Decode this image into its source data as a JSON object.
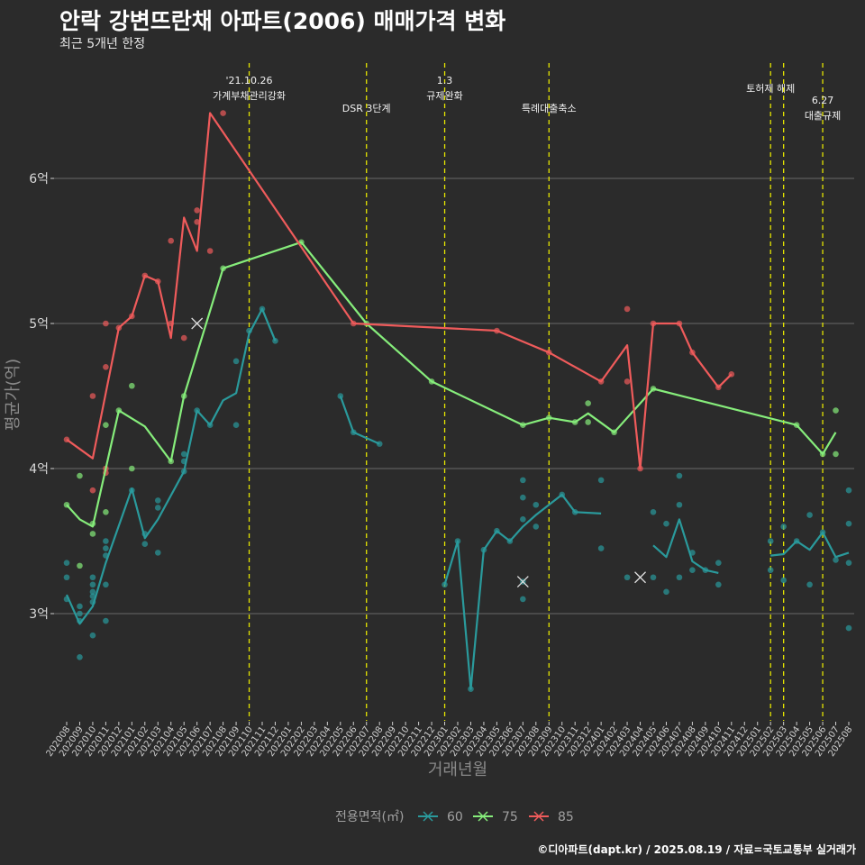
{
  "title": "안락 강변뜨란채 아파트(2006) 매매가격 변화",
  "subtitle": "최근 5개년 한정",
  "caption": "©디아파트(dapt.kr) / 2025.08.19 / 자료=국토교통부 실거래가",
  "chart_data": {
    "type": "line",
    "xlabel": "거래년월",
    "ylabel": "평균가(억)",
    "ylim": [
      2.3,
      6.9
    ],
    "yticks": [
      3,
      4,
      5,
      6
    ],
    "ytick_labels": [
      "3억",
      "4억",
      "5억",
      "6억"
    ],
    "grid": true,
    "legend": {
      "title": "전용면적(㎡)",
      "position": "bottom"
    },
    "x": [
      "202008",
      "202009",
      "202010",
      "202011",
      "202012",
      "202101",
      "202102",
      "202103",
      "202104",
      "202105",
      "202106",
      "202107",
      "202108",
      "202109",
      "202110",
      "202111",
      "202112",
      "202201",
      "202202",
      "202203",
      "202204",
      "202205",
      "202206",
      "202207",
      "202208",
      "202209",
      "202210",
      "202211",
      "202212",
      "202301",
      "202302",
      "202303",
      "202304",
      "202305",
      "202306",
      "202307",
      "202308",
      "202309",
      "202310",
      "202311",
      "202312",
      "202401",
      "202402",
      "202403",
      "202404",
      "202405",
      "202406",
      "202407",
      "202408",
      "202409",
      "202410",
      "202411",
      "202412",
      "202501",
      "202502",
      "202503",
      "202504",
      "202505",
      "202506",
      "202507",
      "202508"
    ],
    "series": [
      {
        "name": "60",
        "color": "#2a9a9c",
        "points": [
          [
            0,
            3.13
          ],
          [
            1,
            2.93
          ],
          [
            2,
            3.05
          ],
          [
            3,
            3.35
          ],
          [
            5,
            3.86
          ],
          [
            6,
            3.52
          ],
          [
            7,
            3.65
          ],
          [
            9,
            3.98
          ],
          [
            10,
            4.4
          ],
          [
            11,
            4.3
          ],
          [
            12,
            4.47
          ],
          [
            13,
            4.52
          ],
          [
            14,
            4.93
          ],
          [
            15,
            5.1
          ],
          [
            16,
            4.88
          ],
          null,
          [
            21,
            4.5
          ],
          [
            22,
            4.25
          ],
          [
            24,
            4.17
          ],
          null,
          [
            29,
            3.2
          ],
          [
            30,
            3.5
          ],
          [
            31,
            2.48
          ],
          [
            32,
            3.44
          ],
          [
            33,
            3.57
          ],
          [
            34,
            3.5
          ],
          [
            35,
            3.6
          ],
          [
            36,
            3.68
          ],
          [
            38,
            3.82
          ],
          [
            39,
            3.7
          ],
          [
            41,
            3.69
          ],
          null,
          [
            45,
            3.47
          ],
          [
            46,
            3.39
          ],
          [
            47,
            3.65
          ],
          [
            48,
            3.36
          ],
          [
            49,
            3.3
          ],
          [
            50,
            3.28
          ],
          null,
          [
            54,
            3.4
          ],
          [
            55,
            3.41
          ],
          [
            56,
            3.5
          ],
          [
            57,
            3.44
          ],
          [
            58,
            3.56
          ],
          [
            59,
            3.39
          ],
          [
            60,
            3.42
          ]
        ]
      },
      {
        "name": "75",
        "color": "#86ed7b",
        "points": [
          [
            0,
            3.75
          ],
          [
            1,
            3.65
          ],
          [
            2,
            3.6
          ],
          [
            4,
            4.4
          ],
          [
            6,
            4.29
          ],
          [
            8,
            4.05
          ],
          [
            9,
            4.5
          ],
          [
            12,
            5.38
          ],
          [
            18,
            5.56
          ],
          [
            23,
            5.0
          ],
          [
            28,
            4.6
          ],
          [
            35,
            4.3
          ],
          [
            37,
            4.35
          ],
          [
            39,
            4.32
          ],
          [
            40,
            4.38
          ],
          [
            42,
            4.25
          ],
          [
            45,
            4.55
          ],
          [
            56,
            4.3
          ],
          [
            58,
            4.1
          ],
          [
            59,
            4.25
          ]
        ]
      },
      {
        "name": "85",
        "color": "#ef5b5b",
        "points": [
          [
            0,
            4.2
          ],
          [
            2,
            4.07
          ],
          [
            4,
            4.97
          ],
          [
            5,
            5.05
          ],
          [
            6,
            5.33
          ],
          [
            7,
            5.29
          ],
          [
            8,
            4.9
          ],
          [
            9,
            5.73
          ],
          [
            10,
            5.5
          ],
          [
            11,
            6.45
          ],
          [
            22,
            5.0
          ],
          [
            33,
            4.95
          ],
          [
            37,
            4.8
          ],
          [
            41,
            4.6
          ],
          [
            43,
            4.85
          ],
          [
            44,
            4.0
          ],
          [
            45,
            5.0
          ],
          [
            47,
            5.0
          ],
          [
            48,
            4.8
          ],
          [
            50,
            4.56
          ],
          [
            51,
            4.65
          ]
        ]
      }
    ],
    "scatter": [
      {
        "series": "60",
        "points": [
          [
            0,
            3.25
          ],
          [
            0,
            3.1
          ],
          [
            0,
            3.35
          ],
          [
            1,
            3.05
          ],
          [
            1,
            3.0
          ],
          [
            1,
            2.95
          ],
          [
            1,
            2.7
          ],
          [
            2,
            3.25
          ],
          [
            2,
            3.2
          ],
          [
            2,
            3.15
          ],
          [
            2,
            3.12
          ],
          [
            2,
            3.08
          ],
          [
            2,
            2.85
          ],
          [
            3,
            3.5
          ],
          [
            3,
            3.45
          ],
          [
            3,
            3.4
          ],
          [
            3,
            3.2
          ],
          [
            3,
            2.95
          ],
          [
            5,
            3.85
          ],
          [
            6,
            3.48
          ],
          [
            6,
            3.55
          ],
          [
            7,
            3.78
          ],
          [
            7,
            3.73
          ],
          [
            7,
            3.42
          ],
          [
            9,
            4.1
          ],
          [
            9,
            4.05
          ],
          [
            9,
            3.98
          ],
          [
            10,
            4.4
          ],
          [
            11,
            4.3
          ],
          [
            13,
            4.3
          ],
          [
            13,
            4.74
          ],
          [
            14,
            4.95
          ],
          [
            15,
            5.1
          ],
          [
            16,
            4.88
          ],
          [
            21,
            4.5
          ],
          [
            22,
            4.25
          ],
          [
            24,
            4.17
          ],
          [
            29,
            3.2
          ],
          [
            30,
            3.5
          ],
          [
            31,
            2.48
          ],
          [
            32,
            3.44
          ],
          [
            33,
            3.57
          ],
          [
            34,
            3.5
          ],
          [
            35,
            3.92
          ],
          [
            35,
            3.8
          ],
          [
            35,
            3.65
          ],
          [
            35,
            3.22
          ],
          [
            35,
            3.1
          ],
          [
            36,
            3.75
          ],
          [
            36,
            3.6
          ],
          [
            38,
            3.82
          ],
          [
            39,
            3.7
          ],
          [
            41,
            3.92
          ],
          [
            41,
            3.45
          ],
          [
            43,
            3.25
          ],
          [
            45,
            3.7
          ],
          [
            45,
            3.25
          ],
          [
            46,
            3.62
          ],
          [
            46,
            3.15
          ],
          [
            47,
            3.95
          ],
          [
            47,
            3.75
          ],
          [
            47,
            3.25
          ],
          [
            48,
            3.42
          ],
          [
            48,
            3.3
          ],
          [
            49,
            3.3
          ],
          [
            50,
            3.35
          ],
          [
            50,
            3.2
          ],
          [
            54,
            3.5
          ],
          [
            54,
            3.3
          ],
          [
            55,
            3.6
          ],
          [
            55,
            3.23
          ],
          [
            56,
            3.5
          ],
          [
            57,
            3.68
          ],
          [
            57,
            3.2
          ],
          [
            58,
            3.56
          ],
          [
            59,
            3.37
          ],
          [
            60,
            3.85
          ],
          [
            60,
            3.62
          ],
          [
            60,
            3.35
          ],
          [
            60,
            2.9
          ]
        ]
      },
      {
        "series": "75",
        "points": [
          [
            0,
            3.75
          ],
          [
            1,
            3.95
          ],
          [
            1,
            3.33
          ],
          [
            2,
            3.62
          ],
          [
            2,
            3.55
          ],
          [
            3,
            4.3
          ],
          [
            3,
            3.7
          ],
          [
            4,
            4.4
          ],
          [
            5,
            4.57
          ],
          [
            5,
            4.0
          ],
          [
            8,
            4.05
          ],
          [
            9,
            4.5
          ],
          [
            12,
            5.38
          ],
          [
            18,
            5.56
          ],
          [
            23,
            5.0
          ],
          [
            28,
            4.6
          ],
          [
            35,
            4.3
          ],
          [
            37,
            4.35
          ],
          [
            39,
            4.32
          ],
          [
            40,
            4.45
          ],
          [
            40,
            4.32
          ],
          [
            42,
            4.25
          ],
          [
            45,
            4.55
          ],
          [
            56,
            4.3
          ],
          [
            58,
            4.1
          ],
          [
            59,
            4.4
          ],
          [
            59,
            4.1
          ]
        ]
      },
      {
        "series": "85",
        "points": [
          [
            0,
            4.2
          ],
          [
            2,
            4.5
          ],
          [
            2,
            3.85
          ],
          [
            3,
            5.0
          ],
          [
            3,
            4.7
          ],
          [
            3,
            4.0
          ],
          [
            3,
            3.97
          ],
          [
            4,
            4.97
          ],
          [
            5,
            5.05
          ],
          [
            6,
            5.33
          ],
          [
            7,
            5.29
          ],
          [
            8,
            5.57
          ],
          [
            8,
            5.0
          ],
          [
            9,
            4.9
          ],
          [
            10,
            5.78
          ],
          [
            10,
            5.7
          ],
          [
            11,
            5.5
          ],
          [
            12,
            6.45
          ],
          [
            22,
            5.0
          ],
          [
            33,
            4.95
          ],
          [
            37,
            4.8
          ],
          [
            41,
            4.6
          ],
          [
            43,
            5.1
          ],
          [
            43,
            4.6
          ],
          [
            44,
            4.0
          ],
          [
            45,
            5.0
          ],
          [
            47,
            5.0
          ],
          [
            48,
            4.8
          ],
          [
            50,
            4.56
          ],
          [
            51,
            4.65
          ]
        ]
      }
    ],
    "cross_markers": [
      {
        "series": "75",
        "x": 10,
        "y": 5.0
      },
      {
        "series": "60",
        "x": 35,
        "y": 3.22
      },
      {
        "series": "60",
        "x": 44,
        "y": 3.25
      }
    ],
    "events": [
      {
        "x": 14,
        "lines": [
          "'21.10.26",
          "가계부채관리강화"
        ]
      },
      {
        "x": 23,
        "lines": [
          "DSR 3단계"
        ]
      },
      {
        "x": 29,
        "lines": [
          "1.3",
          "규제완화"
        ]
      },
      {
        "x": 37,
        "lines": [
          "특례대출축소"
        ]
      },
      {
        "x": 54,
        "lines": [
          "토허제 해제"
        ]
      },
      {
        "x": 55,
        "lines": []
      },
      {
        "x": 58,
        "lines": [
          "6.27",
          "대출규제"
        ]
      }
    ]
  }
}
